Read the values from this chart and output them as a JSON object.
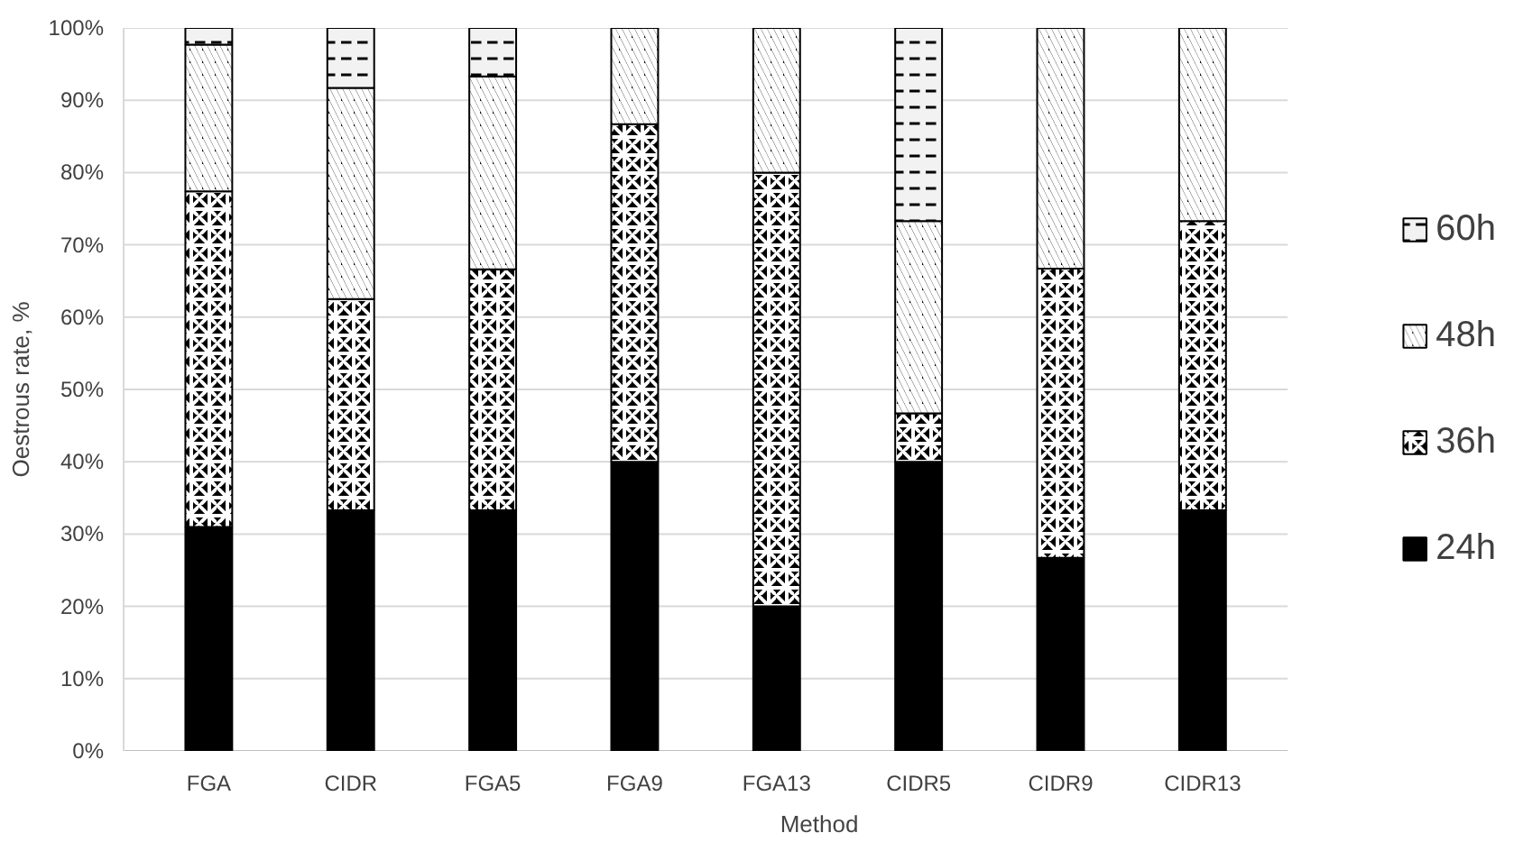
{
  "chart_data": {
    "type": "bar",
    "stacked": true,
    "xlabel": "Method",
    "ylabel": "Oestrous rate, %",
    "categories": [
      "FGA",
      "CIDR",
      "FGA5",
      "FGA9",
      "FGA13",
      "CIDR5",
      "CIDR9",
      "CIDR13"
    ],
    "series": [
      {
        "name": "24h",
        "color": "#000000",
        "values": [
          31,
          33.3,
          33.3,
          40,
          20,
          40,
          26.7,
          33.3
        ]
      },
      {
        "name": "36h",
        "color": "#000000",
        "values": [
          46.4,
          29.2,
          33.3,
          46.7,
          60,
          6.7,
          40,
          40
        ]
      },
      {
        "name": "48h",
        "color": "#000000",
        "values": [
          20.3,
          29.2,
          26.7,
          13.3,
          20,
          26.6,
          33.3,
          26.7
        ]
      },
      {
        "name": "60h",
        "color": "#f2f2f2",
        "values": [
          2.3,
          8.3,
          6.7,
          0,
          0,
          26.7,
          0,
          0
        ]
      }
    ],
    "ylim": [
      0,
      100
    ],
    "yticks": [
      {
        "value": 0,
        "label": "0%"
      },
      {
        "value": 10,
        "label": "10%"
      },
      {
        "value": 20,
        "label": "20%"
      },
      {
        "value": 30,
        "label": "30%"
      },
      {
        "value": 40,
        "label": "40%"
      },
      {
        "value": 50,
        "label": "50%"
      },
      {
        "value": 60,
        "label": "60%"
      },
      {
        "value": 70,
        "label": "70%"
      },
      {
        "value": 80,
        "label": "80%"
      },
      {
        "value": 90,
        "label": "90%"
      },
      {
        "value": 100,
        "label": "100%"
      }
    ],
    "grid": "y",
    "legend": "right"
  }
}
